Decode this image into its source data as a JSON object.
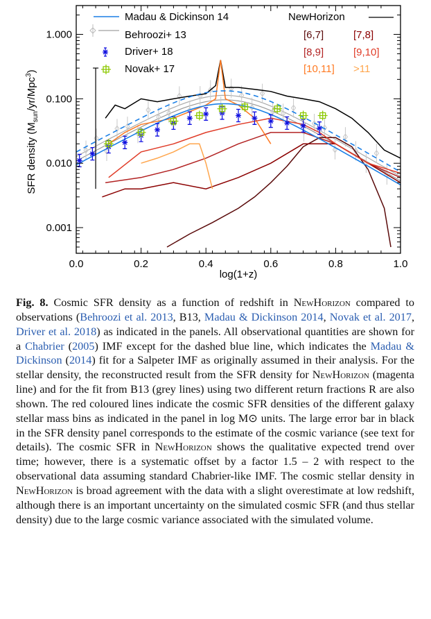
{
  "chart_data": {
    "type": "line",
    "xlabel": "log(1+z)",
    "ylabel": "SFR density (M_sun/yr/Mpc^3)",
    "xlim": [
      0,
      1.0
    ],
    "ylim": [
      0.0004,
      2.8
    ],
    "yscale": "log",
    "xticks": [
      "0.0",
      "0.2",
      "0.4",
      "0.6",
      "0.8",
      "1.0"
    ],
    "yticks": [
      "1.000",
      "0.100",
      "0.010",
      "0.001"
    ],
    "legend_left": [
      "Madau & Dickinson 14",
      "Behroozi+ 13",
      "Driver+ 18",
      "Novak+ 17"
    ],
    "legend_right_title": "NewHorizon",
    "legend_right_bins": [
      "[6,7]",
      "[7,8]",
      "[8,9]",
      "[9,10]",
      "[10,11]",
      ">11"
    ],
    "colors": {
      "madau": "#1a7fe6",
      "behroozi": "#aaaaaa",
      "driver": "#1010e0",
      "novak": "#8cc800",
      "newhorizon": "#000000",
      "bin_6_7": "#5a0a0a",
      "bin_7_8": "#8b0000",
      "bin_8_9": "#b22222",
      "bin_9_10": "#e03c28",
      "bin_10_11": "#ff7a22",
      "bin_gt11": "#ffa64d"
    },
    "series": [
      {
        "name": "NewHorizon",
        "x": [
          0.09,
          0.12,
          0.15,
          0.2,
          0.25,
          0.3,
          0.35,
          0.4,
          0.43,
          0.445,
          0.46,
          0.5,
          0.55,
          0.6,
          0.65,
          0.7,
          0.75,
          0.8,
          0.85,
          0.9,
          0.95,
          1.0
        ],
        "y": [
          0.05,
          0.08,
          0.07,
          0.1,
          0.09,
          0.1,
          0.11,
          0.12,
          0.16,
          0.4,
          0.15,
          0.15,
          0.14,
          0.13,
          0.11,
          0.1,
          0.09,
          0.07,
          0.05,
          0.03,
          0.016,
          0.012
        ]
      },
      {
        "name": "[6,7]",
        "x": [
          0.28,
          0.35,
          0.42,
          0.5,
          0.55,
          0.6,
          0.65,
          0.7,
          0.75,
          0.8,
          0.85,
          0.9,
          0.95,
          0.97
        ],
        "y": [
          0.0005,
          0.0008,
          0.0012,
          0.002,
          0.003,
          0.005,
          0.009,
          0.018,
          0.025,
          0.025,
          0.018,
          0.008,
          0.002,
          0.0005
        ]
      },
      {
        "name": "[7,8]",
        "x": [
          0.08,
          0.15,
          0.2,
          0.3,
          0.4,
          0.5,
          0.6,
          0.7,
          0.8,
          0.9,
          1.0
        ],
        "y": [
          0.003,
          0.004,
          0.004,
          0.005,
          0.004,
          0.006,
          0.01,
          0.02,
          0.02,
          0.01,
          0.005
        ]
      },
      {
        "name": "[8,9]",
        "x": [
          0.09,
          0.2,
          0.3,
          0.4,
          0.5,
          0.6,
          0.7,
          0.8,
          0.9,
          1.0
        ],
        "y": [
          0.005,
          0.006,
          0.008,
          0.012,
          0.02,
          0.03,
          0.03,
          0.02,
          0.01,
          0.006
        ]
      },
      {
        "name": "[9,10]",
        "x": [
          0.1,
          0.2,
          0.3,
          0.4,
          0.5,
          0.6,
          0.7,
          0.75,
          0.8,
          0.9,
          1.0
        ],
        "y": [
          0.006,
          0.015,
          0.02,
          0.03,
          0.04,
          0.05,
          0.04,
          0.03,
          0.02,
          0.01,
          0.007
        ]
      },
      {
        "name": "[10,11]",
        "x": [
          0.1,
          0.15,
          0.2,
          0.3,
          0.4,
          0.43,
          0.445,
          0.46,
          0.5,
          0.55,
          0.6
        ],
        "y": [
          0.02,
          0.03,
          0.04,
          0.05,
          0.08,
          0.1,
          0.4,
          0.1,
          0.08,
          0.05,
          0.02
        ]
      },
      {
        "name": ">11",
        "x": [
          0.2,
          0.25,
          0.3,
          0.35,
          0.38,
          0.4,
          0.42
        ],
        "y": [
          0.01,
          0.012,
          0.015,
          0.02,
          0.02,
          0.01,
          0.004
        ]
      }
    ],
    "driver": {
      "x": [
        0.01,
        0.05,
        0.1,
        0.15,
        0.2,
        0.25,
        0.3,
        0.35,
        0.4,
        0.45,
        0.5,
        0.55,
        0.6,
        0.65,
        0.7,
        0.75
      ],
      "y": [
        0.011,
        0.014,
        0.018,
        0.021,
        0.027,
        0.033,
        0.042,
        0.05,
        0.058,
        0.06,
        0.055,
        0.05,
        0.045,
        0.042,
        0.038,
        0.035
      ]
    },
    "novak": {
      "x": [
        0.1,
        0.2,
        0.3,
        0.38,
        0.45,
        0.52,
        0.62,
        0.7,
        0.76
      ],
      "y": [
        0.02,
        0.03,
        0.045,
        0.055,
        0.07,
        0.075,
        0.07,
        0.055,
        0.055
      ]
    }
  },
  "caption": {
    "label": "Fig. 8.",
    "p1": " Cosmic SFR density as a function of redshift in ",
    "nh": "NewHorizon",
    "p2": " compared to observations (",
    "r1": "Behroozi et al. 2013",
    "p3": ", B13, ",
    "r2": "Madau & Dickinson 2014",
    "p4": ", ",
    "r3": "Novak et al. 2017",
    "p5": ", ",
    "r4": "Driver et al. 2018",
    "p6": ") as indicated in the panels. All observational quantities are shown for a ",
    "r5": "Chabrier",
    "p7": " (",
    "r6": "2005",
    "p8": ") IMF except for the dashed blue line, which indicates the ",
    "r7": "Madau & Dickinson",
    "p9": " (",
    "r8": "2014",
    "p10": ") fit for a Salpeter IMF as originally assumed in their analysis. For the stellar density, the reconstructed result from the SFR density for ",
    "p11": " (magenta line) and for the fit from B13 (grey lines) using two different return fractions R are also shown. The red coloured lines indicate the cosmic SFR densities of the different galaxy stellar mass bins as indicated in the panel in log M⊙ units. The large error bar in black in the SFR density panel corresponds to the estimate of the cosmic variance (see text for details). The cosmic SFR in ",
    "p12": " shows the qualitative expected trend over time; however, there is a systematic offset by a factor 1.5 – 2 with respect to the observational data assuming standard Chabrier-like IMF. The cosmic stellar density in ",
    "p13": " is broad agreement with the data with a slight overestimate at low redshift, although there is an important uncertainty on the simulated cosmic SFR (and thus stellar density) due to the large cosmic variance associated with the simulated volume."
  }
}
